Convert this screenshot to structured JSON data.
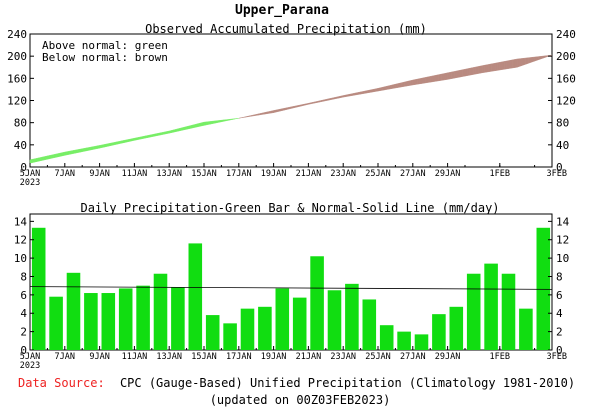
{
  "page": {
    "title": "Upper_Parana",
    "source_label": "Data Source:",
    "source_text": "CPC (Gauge-Based) Unified Precipitation (Climatology 1981-2010)",
    "updated": "(updated on 00Z03FEB2023)"
  },
  "colors": {
    "above": "#77ee66",
    "below": "#b98a80",
    "bar": "#11dd11",
    "source": "#ee2222"
  },
  "chart_data": [
    {
      "type": "area",
      "title": "Observed Accumulated Precipitation (mm)",
      "legend": [
        "Above normal: green",
        "Below normal: brown"
      ],
      "legend_position": "top-left",
      "x_ticks": [
        "5JAN",
        "7JAN",
        "9JAN",
        "11JAN",
        "13JAN",
        "15JAN",
        "17JAN",
        "19JAN",
        "21JAN",
        "23JAN",
        "25JAN",
        "27JAN",
        "29JAN",
        "1FEB",
        "3FEB"
      ],
      "x_year": "2023",
      "y_ticks": [
        "0",
        "40",
        "80",
        "120",
        "160",
        "200",
        "240"
      ],
      "ylim": [
        0,
        240
      ],
      "x_days": [
        0,
        2,
        4,
        6,
        8,
        10,
        12,
        14,
        16,
        18,
        20,
        22,
        24,
        26,
        28,
        30
      ],
      "observed": [
        13,
        27,
        39,
        52,
        65,
        81,
        88,
        98,
        113,
        126,
        137,
        148,
        158,
        170,
        180,
        202
      ],
      "normal": [
        6.9,
        21,
        34,
        48,
        61,
        75,
        88,
        102,
        115,
        129,
        142,
        157,
        170,
        183,
        195,
        202
      ]
    },
    {
      "type": "bar",
      "title": "Daily Precipitation-Green Bar & Normal-Solid Line (mm/day)",
      "x_ticks": [
        "5JAN",
        "7JAN",
        "9JAN",
        "11JAN",
        "13JAN",
        "15JAN",
        "17JAN",
        "19JAN",
        "21JAN",
        "23JAN",
        "25JAN",
        "27JAN",
        "29JAN",
        "1FEB",
        "3FEB"
      ],
      "x_year": "2023",
      "y_ticks": [
        "0",
        "2",
        "4",
        "6",
        "8",
        "10",
        "12",
        "14"
      ],
      "ylim": [
        0,
        14.8
      ],
      "values": [
        13.3,
        5.8,
        8.4,
        6.2,
        6.2,
        6.7,
        7.0,
        8.3,
        6.8,
        11.6,
        3.8,
        2.9,
        4.5,
        4.7,
        6.7,
        5.7,
        10.2,
        6.5,
        7.2,
        5.5,
        2.7,
        2.0,
        1.7,
        3.9,
        4.7,
        8.3,
        9.4,
        8.3,
        4.5,
        13.3
      ],
      "normal_start": 6.9,
      "normal_end": 6.6
    }
  ]
}
